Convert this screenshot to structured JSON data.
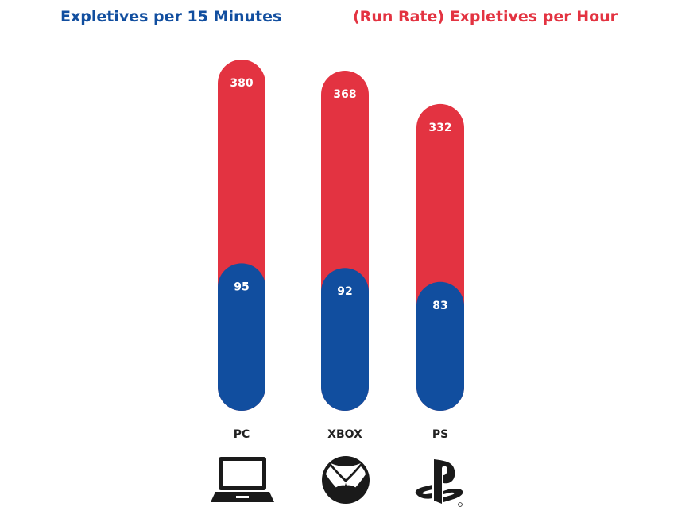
{
  "chart_data": {
    "type": "bar",
    "categories": [
      "PC",
      "XBOX",
      "PS"
    ],
    "series": [
      {
        "name": "Expletives per 15 Minutes",
        "values": [
          95,
          92,
          83
        ],
        "color": "#114e9f"
      },
      {
        "name": "(Run Rate) Expletives per Hour",
        "values": [
          380,
          368,
          332
        ],
        "color": "#e33341"
      }
    ],
    "layout_note": "overlapping bars",
    "ylim": [
      0,
      400
    ],
    "grid": false,
    "legend_placement": "top",
    "icons": [
      "laptop-icon",
      "xbox-icon",
      "playstation-icon"
    ]
  }
}
